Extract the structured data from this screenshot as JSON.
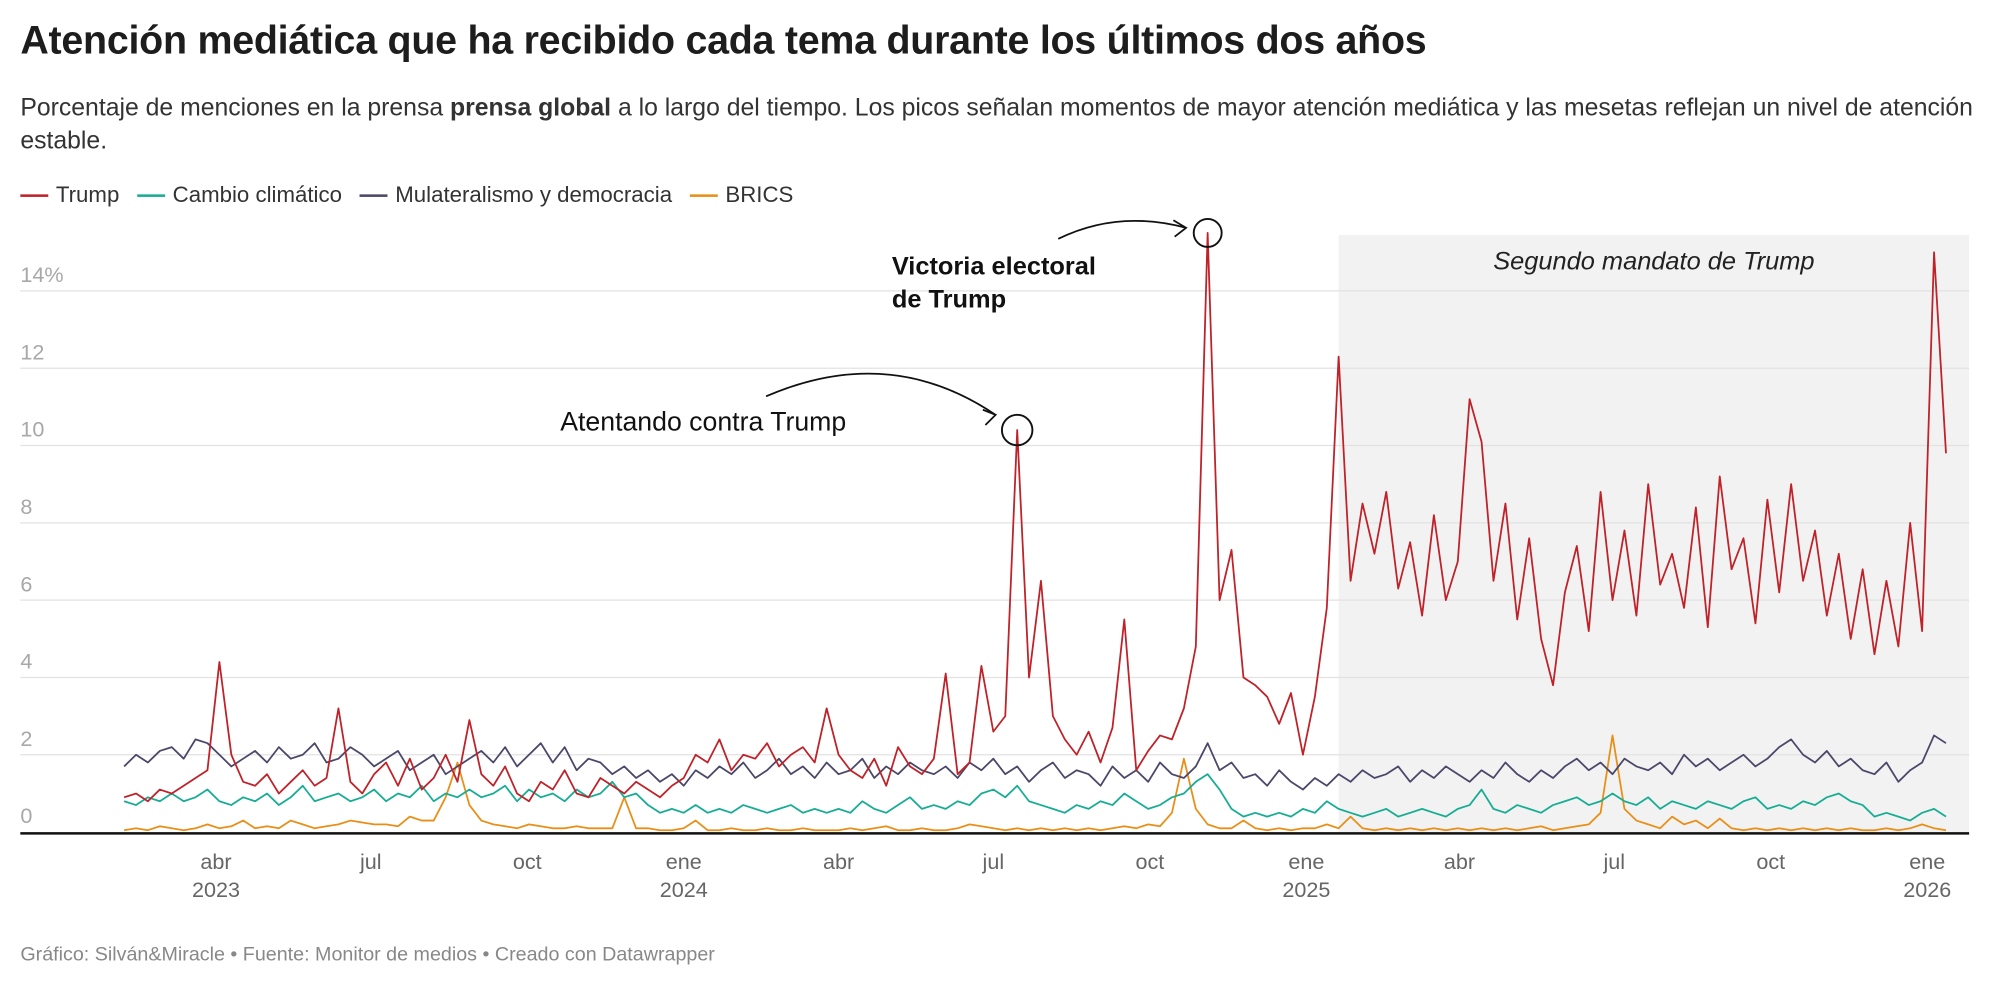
{
  "title": "Atención mediática que ha recibido cada tema durante los últimos dos años",
  "subtitle": {
    "before": "Porcentaje de menciones en la prensa ",
    "bold": "prensa global",
    "after": " a lo largo del tiempo. Los picos señalan momentos de mayor atención mediática y las mesetas reflejan un nivel de atención estable."
  },
  "footer": "Gráfico: Silván&Miracle • Fuente: Monitor de medios • Creado con Datawrapper",
  "chart_data": {
    "type": "line",
    "ylabel": "",
    "xlabel": "",
    "ylim": [
      0,
      15.5
    ],
    "grid": true,
    "legend_position": "top-left",
    "y_ticks": [
      {
        "v": 0,
        "label": "0"
      },
      {
        "v": 2,
        "label": "2"
      },
      {
        "v": 4,
        "label": "4"
      },
      {
        "v": 6,
        "label": "6"
      },
      {
        "v": 8,
        "label": "8"
      },
      {
        "v": 10,
        "label": "10"
      },
      {
        "v": 12,
        "label": "12"
      },
      {
        "v": 14,
        "label": "14%"
      }
    ],
    "x_ticks": [
      {
        "date": "2023-04-01",
        "label": "abr",
        "year": "2023"
      },
      {
        "date": "2023-07-01",
        "label": "jul",
        "year": ""
      },
      {
        "date": "2023-10-01",
        "label": "oct",
        "year": ""
      },
      {
        "date": "2024-01-01",
        "label": "ene",
        "year": "2024"
      },
      {
        "date": "2024-04-01",
        "label": "abr",
        "year": ""
      },
      {
        "date": "2024-07-01",
        "label": "jul",
        "year": ""
      },
      {
        "date": "2024-10-01",
        "label": "oct",
        "year": ""
      },
      {
        "date": "2025-01-01",
        "label": "ene",
        "year": "2025"
      },
      {
        "date": "2025-04-01",
        "label": "abr",
        "year": ""
      },
      {
        "date": "2025-07-01",
        "label": "jul",
        "year": ""
      },
      {
        "date": "2025-10-01",
        "label": "oct",
        "year": ""
      },
      {
        "date": "2026-01-01",
        "label": "ene",
        "year": "2026"
      }
    ],
    "shaded_period": {
      "from": "2025-01-20",
      "to": "2026-01-12",
      "label": "Segundo mandato de Trump",
      "color": "#f2f2f2"
    },
    "annotations": [
      {
        "label": "Atentando contra Trump",
        "date": "2024-07-15",
        "value": 10.4,
        "bold": false
      },
      {
        "label": "Victoria electoral de Trump",
        "line1": "Victoria electoral",
        "line2": "de Trump",
        "date": "2024-11-04",
        "value": 15.5,
        "bold": true
      }
    ],
    "x": [
      "2023-02-06",
      "2023-02-13",
      "2023-02-20",
      "2023-02-27",
      "2023-03-06",
      "2023-03-13",
      "2023-03-20",
      "2023-03-27",
      "2023-04-03",
      "2023-04-10",
      "2023-04-17",
      "2023-04-24",
      "2023-05-01",
      "2023-05-08",
      "2023-05-15",
      "2023-05-22",
      "2023-05-29",
      "2023-06-05",
      "2023-06-12",
      "2023-06-19",
      "2023-06-26",
      "2023-07-03",
      "2023-07-10",
      "2023-07-17",
      "2023-07-24",
      "2023-07-31",
      "2023-08-07",
      "2023-08-14",
      "2023-08-21",
      "2023-08-28",
      "2023-09-04",
      "2023-09-11",
      "2023-09-18",
      "2023-09-25",
      "2023-10-02",
      "2023-10-09",
      "2023-10-16",
      "2023-10-23",
      "2023-10-30",
      "2023-11-06",
      "2023-11-13",
      "2023-11-20",
      "2023-11-27",
      "2023-12-04",
      "2023-12-11",
      "2023-12-18",
      "2023-12-25",
      "2024-01-01",
      "2024-01-08",
      "2024-01-15",
      "2024-01-22",
      "2024-01-29",
      "2024-02-05",
      "2024-02-12",
      "2024-02-19",
      "2024-02-26",
      "2024-03-04",
      "2024-03-11",
      "2024-03-18",
      "2024-03-25",
      "2024-04-01",
      "2024-04-08",
      "2024-04-15",
      "2024-04-22",
      "2024-04-29",
      "2024-05-06",
      "2024-05-13",
      "2024-05-20",
      "2024-05-27",
      "2024-06-03",
      "2024-06-10",
      "2024-06-17",
      "2024-06-24",
      "2024-07-01",
      "2024-07-08",
      "2024-07-15",
      "2024-07-22",
      "2024-07-29",
      "2024-08-05",
      "2024-08-12",
      "2024-08-19",
      "2024-08-26",
      "2024-09-02",
      "2024-09-09",
      "2024-09-16",
      "2024-09-23",
      "2024-09-30",
      "2024-10-07",
      "2024-10-14",
      "2024-10-21",
      "2024-10-28",
      "2024-11-04",
      "2024-11-11",
      "2024-11-18",
      "2024-11-25",
      "2024-12-02",
      "2024-12-09",
      "2024-12-16",
      "2024-12-23",
      "2024-12-30",
      "2025-01-06",
      "2025-01-13",
      "2025-01-20",
      "2025-01-27",
      "2025-02-03",
      "2025-02-10",
      "2025-02-17",
      "2025-02-24",
      "2025-03-03",
      "2025-03-10",
      "2025-03-17",
      "2025-03-24",
      "2025-03-31",
      "2025-04-07",
      "2025-04-14",
      "2025-04-21",
      "2025-04-28",
      "2025-05-05",
      "2025-05-12",
      "2025-05-19",
      "2025-05-26",
      "2025-06-02",
      "2025-06-09",
      "2025-06-16",
      "2025-06-23",
      "2025-06-30",
      "2025-07-07",
      "2025-07-14",
      "2025-07-21",
      "2025-07-28",
      "2025-08-04",
      "2025-08-11",
      "2025-08-18",
      "2025-08-25",
      "2025-09-01",
      "2025-09-08",
      "2025-09-15",
      "2025-09-22",
      "2025-09-29",
      "2025-10-06",
      "2025-10-13",
      "2025-10-20",
      "2025-10-27",
      "2025-11-03",
      "2025-11-10",
      "2025-11-17",
      "2025-11-24",
      "2025-12-01",
      "2025-12-08",
      "2025-12-15",
      "2025-12-22",
      "2025-12-29",
      "2026-01-05",
      "2026-01-12"
    ],
    "series": [
      {
        "name": "Trump",
        "color": "#bf2229",
        "values": [
          0.9,
          1.0,
          0.8,
          1.1,
          1.0,
          1.2,
          1.4,
          1.6,
          4.4,
          2.0,
          1.3,
          1.2,
          1.5,
          1.0,
          1.3,
          1.6,
          1.2,
          1.4,
          3.2,
          1.3,
          1.0,
          1.5,
          1.8,
          1.2,
          1.9,
          1.1,
          1.4,
          2.0,
          1.3,
          2.9,
          1.5,
          1.2,
          1.7,
          1.0,
          0.8,
          1.3,
          1.1,
          1.6,
          1.0,
          0.9,
          1.4,
          1.2,
          1.0,
          1.3,
          1.1,
          0.9,
          1.2,
          1.4,
          2.0,
          1.8,
          2.4,
          1.6,
          2.0,
          1.9,
          2.3,
          1.7,
          2.0,
          2.2,
          1.8,
          3.2,
          2.0,
          1.6,
          1.4,
          1.9,
          1.2,
          2.2,
          1.7,
          1.5,
          1.9,
          4.1,
          1.5,
          1.8,
          4.3,
          2.6,
          3.0,
          10.4,
          4.0,
          6.5,
          3.0,
          2.4,
          2.0,
          2.6,
          1.8,
          2.7,
          5.5,
          1.6,
          2.1,
          2.5,
          2.4,
          3.2,
          4.8,
          15.5,
          6.0,
          7.3,
          4.0,
          3.8,
          3.5,
          2.8,
          3.6,
          2.0,
          3.5,
          5.8,
          12.3,
          6.5,
          8.5,
          7.2,
          8.8,
          6.3,
          7.5,
          5.6,
          8.2,
          6.0,
          7.0,
          11.2,
          10.1,
          6.5,
          8.5,
          5.5,
          7.6,
          5.0,
          3.8,
          6.2,
          7.4,
          5.2,
          8.8,
          6.0,
          7.8,
          5.6,
          9.0,
          6.4,
          7.2,
          5.8,
          8.4,
          5.3,
          9.2,
          6.8,
          7.6,
          5.4,
          8.6,
          6.2,
          9.0,
          6.5,
          7.8,
          5.6,
          7.2,
          5.0,
          6.8,
          4.6,
          6.5,
          4.8,
          8.0,
          5.2,
          15.0,
          9.8
        ]
      },
      {
        "name": "Cambio climático",
        "color": "#17ad94",
        "values": [
          0.8,
          0.7,
          0.9,
          0.8,
          1.0,
          0.8,
          0.9,
          1.1,
          0.8,
          0.7,
          0.9,
          0.8,
          1.0,
          0.7,
          0.9,
          1.2,
          0.8,
          0.9,
          1.0,
          0.8,
          0.9,
          1.1,
          0.8,
          1.0,
          0.9,
          1.2,
          0.8,
          1.0,
          0.9,
          1.1,
          0.9,
          1.0,
          1.2,
          0.8,
          1.1,
          0.9,
          1.0,
          0.8,
          1.1,
          0.9,
          1.0,
          1.3,
          0.9,
          1.0,
          0.7,
          0.5,
          0.6,
          0.5,
          0.7,
          0.5,
          0.6,
          0.5,
          0.7,
          0.6,
          0.5,
          0.6,
          0.7,
          0.5,
          0.6,
          0.5,
          0.6,
          0.5,
          0.8,
          0.6,
          0.5,
          0.7,
          0.9,
          0.6,
          0.7,
          0.6,
          0.8,
          0.7,
          1.0,
          1.1,
          0.9,
          1.2,
          0.8,
          0.7,
          0.6,
          0.5,
          0.7,
          0.6,
          0.8,
          0.7,
          1.0,
          0.8,
          0.6,
          0.7,
          0.9,
          1.0,
          1.3,
          1.5,
          1.1,
          0.6,
          0.4,
          0.5,
          0.4,
          0.5,
          0.4,
          0.6,
          0.5,
          0.8,
          0.6,
          0.5,
          0.4,
          0.5,
          0.6,
          0.4,
          0.5,
          0.6,
          0.5,
          0.4,
          0.6,
          0.7,
          1.1,
          0.6,
          0.5,
          0.7,
          0.6,
          0.5,
          0.7,
          0.8,
          0.9,
          0.7,
          0.8,
          1.0,
          0.8,
          0.7,
          0.9,
          0.6,
          0.8,
          0.7,
          0.6,
          0.8,
          0.7,
          0.6,
          0.8,
          0.9,
          0.6,
          0.7,
          0.6,
          0.8,
          0.7,
          0.9,
          1.0,
          0.8,
          0.7,
          0.4,
          0.5,
          0.4,
          0.3,
          0.5,
          0.6,
          0.4
        ]
      },
      {
        "name": "Mulateralismo y democracia",
        "color": "#4b4769",
        "values": [
          1.7,
          2.0,
          1.8,
          2.1,
          2.2,
          1.9,
          2.4,
          2.3,
          2.0,
          1.7,
          1.9,
          2.1,
          1.8,
          2.2,
          1.9,
          2.0,
          2.3,
          1.8,
          1.9,
          2.2,
          2.0,
          1.7,
          1.9,
          2.1,
          1.6,
          1.8,
          2.0,
          1.5,
          1.7,
          1.9,
          2.1,
          1.8,
          2.2,
          1.7,
          2.0,
          2.3,
          1.8,
          2.2,
          1.6,
          1.9,
          1.8,
          1.5,
          1.7,
          1.4,
          1.6,
          1.3,
          1.5,
          1.2,
          1.6,
          1.4,
          1.7,
          1.5,
          1.8,
          1.4,
          1.6,
          1.9,
          1.5,
          1.7,
          1.4,
          1.8,
          1.5,
          1.6,
          1.9,
          1.4,
          1.7,
          1.5,
          1.8,
          1.6,
          1.5,
          1.7,
          1.4,
          1.8,
          1.6,
          1.9,
          1.5,
          1.7,
          1.3,
          1.6,
          1.8,
          1.4,
          1.6,
          1.5,
          1.2,
          1.7,
          1.4,
          1.6,
          1.3,
          1.8,
          1.5,
          1.4,
          1.7,
          2.3,
          1.6,
          1.8,
          1.4,
          1.5,
          1.2,
          1.6,
          1.3,
          1.1,
          1.4,
          1.2,
          1.5,
          1.3,
          1.6,
          1.4,
          1.5,
          1.7,
          1.3,
          1.6,
          1.4,
          1.7,
          1.5,
          1.3,
          1.6,
          1.4,
          1.8,
          1.5,
          1.3,
          1.6,
          1.4,
          1.7,
          1.9,
          1.6,
          1.8,
          1.5,
          1.9,
          1.7,
          1.6,
          1.8,
          1.5,
          2.0,
          1.7,
          1.9,
          1.6,
          1.8,
          2.0,
          1.7,
          1.9,
          2.2,
          2.4,
          2.0,
          1.8,
          2.1,
          1.7,
          1.9,
          1.6,
          1.5,
          1.8,
          1.3,
          1.6,
          1.8,
          2.5,
          2.3
        ]
      },
      {
        "name": "BRICS",
        "color": "#e98f17",
        "values": [
          0.05,
          0.1,
          0.05,
          0.15,
          0.1,
          0.05,
          0.1,
          0.2,
          0.1,
          0.15,
          0.3,
          0.1,
          0.15,
          0.1,
          0.3,
          0.2,
          0.1,
          0.15,
          0.2,
          0.3,
          0.25,
          0.2,
          0.2,
          0.15,
          0.4,
          0.3,
          0.3,
          0.9,
          1.8,
          0.7,
          0.3,
          0.2,
          0.15,
          0.1,
          0.2,
          0.15,
          0.1,
          0.1,
          0.15,
          0.1,
          0.1,
          0.1,
          0.9,
          0.1,
          0.1,
          0.05,
          0.05,
          0.1,
          0.3,
          0.05,
          0.05,
          0.1,
          0.05,
          0.05,
          0.1,
          0.05,
          0.05,
          0.1,
          0.05,
          0.05,
          0.05,
          0.1,
          0.05,
          0.1,
          0.15,
          0.05,
          0.05,
          0.1,
          0.05,
          0.05,
          0.1,
          0.2,
          0.15,
          0.1,
          0.05,
          0.1,
          0.05,
          0.1,
          0.05,
          0.1,
          0.05,
          0.1,
          0.05,
          0.1,
          0.15,
          0.1,
          0.2,
          0.15,
          0.5,
          1.9,
          0.6,
          0.2,
          0.1,
          0.1,
          0.3,
          0.1,
          0.05,
          0.1,
          0.05,
          0.1,
          0.1,
          0.2,
          0.1,
          0.4,
          0.1,
          0.05,
          0.1,
          0.05,
          0.1,
          0.05,
          0.1,
          0.05,
          0.1,
          0.05,
          0.1,
          0.05,
          0.1,
          0.05,
          0.1,
          0.15,
          0.05,
          0.1,
          0.15,
          0.2,
          0.5,
          2.5,
          0.6,
          0.3,
          0.2,
          0.1,
          0.4,
          0.2,
          0.3,
          0.1,
          0.35,
          0.1,
          0.05,
          0.1,
          0.05,
          0.1,
          0.05,
          0.1,
          0.05,
          0.1,
          0.05,
          0.1,
          0.05,
          0.05,
          0.1,
          0.05,
          0.1,
          0.2,
          0.1,
          0.05
        ]
      }
    ]
  }
}
